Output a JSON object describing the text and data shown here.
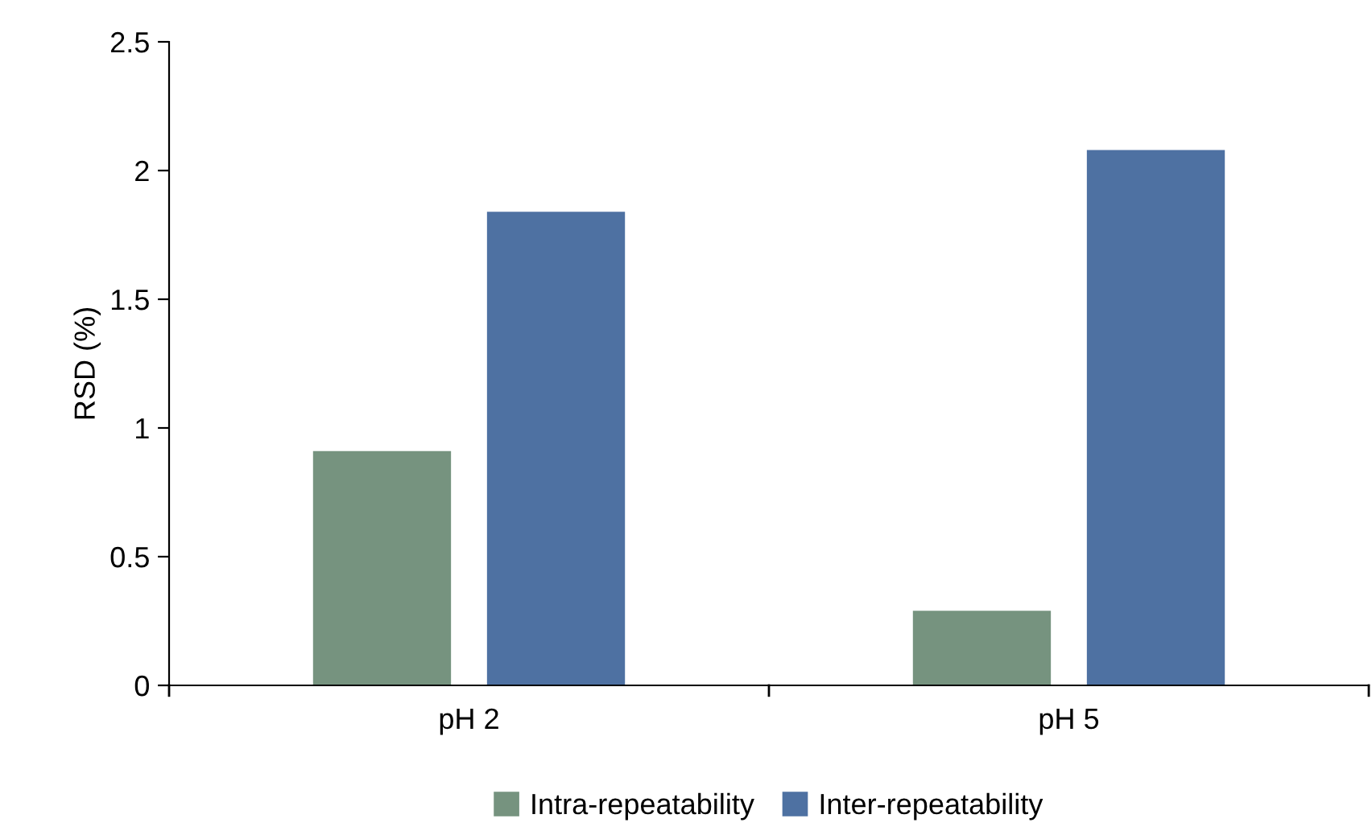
{
  "chart_data": {
    "type": "bar",
    "ylabel": "RSD (%)",
    "categories": [
      "pH 2",
      "pH 5"
    ],
    "series": [
      {
        "name": "Intra-repeatability",
        "color": "#76937f",
        "values": [
          0.91,
          0.29
        ]
      },
      {
        "name": "Inter-repeatability",
        "color": "#4e71a2",
        "values": [
          1.84,
          2.08
        ]
      }
    ],
    "ylim": [
      0,
      2.5
    ],
    "yticks": [
      0,
      0.5,
      1,
      1.5,
      2,
      2.5
    ],
    "grid": false,
    "legend": "bottom"
  }
}
